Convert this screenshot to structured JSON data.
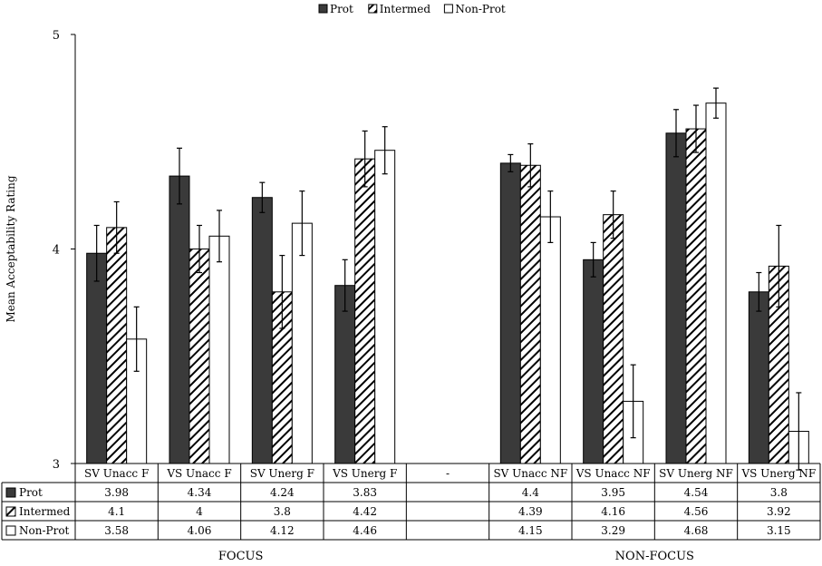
{
  "chart_data": {
    "type": "bar",
    "ylabel": "Mean Acceptability Rating",
    "xlabel": "",
    "ylim": [
      3,
      5
    ],
    "y_ticks": [
      "3",
      "4",
      "5"
    ],
    "grid": false,
    "legend_position": "top",
    "categories": [
      "SV Unacc F",
      "VS Unacc F",
      "SV Unerg F",
      "VS Unerg F",
      "-",
      "SV Unacc NF",
      "VS Unacc NF",
      "SV Unerg NF",
      "VS Unerg NF"
    ],
    "series": [
      {
        "name": "Prot",
        "fill": "dark",
        "values": [
          3.98,
          4.34,
          4.24,
          3.83,
          null,
          4.4,
          3.95,
          4.54,
          3.8
        ],
        "labels": [
          "3.98",
          "4.34",
          "4.24",
          "3.83",
          "",
          "4.4",
          "3.95",
          "4.54",
          "3.8"
        ],
        "errors": [
          0.13,
          0.13,
          0.07,
          0.12,
          null,
          0.04,
          0.08,
          0.11,
          0.09
        ]
      },
      {
        "name": "Intermed",
        "fill": "hatched",
        "values": [
          4.1,
          4,
          3.8,
          4.42,
          null,
          4.39,
          4.16,
          4.56,
          3.92
        ],
        "labels": [
          "4.1",
          "4",
          "3.8",
          "4.42",
          "",
          "4.39",
          "4.16",
          "4.56",
          "3.92"
        ],
        "errors": [
          0.12,
          0.11,
          0.17,
          0.13,
          null,
          0.1,
          0.11,
          0.11,
          0.19
        ]
      },
      {
        "name": "Non-Prot",
        "fill": "white",
        "values": [
          3.58,
          4.06,
          4.12,
          4.46,
          null,
          4.15,
          3.29,
          4.68,
          3.15
        ],
        "labels": [
          "3.58",
          "4.06",
          "4.12",
          "4.46",
          "",
          "4.15",
          "3.29",
          "4.68",
          "3.15"
        ],
        "errors": [
          0.15,
          0.12,
          0.15,
          0.11,
          null,
          0.12,
          0.17,
          0.07,
          0.18
        ]
      }
    ],
    "group_labels": [
      {
        "label": "FOCUS",
        "spans": [
          0,
          3
        ]
      },
      {
        "label": "NON-FOCUS",
        "spans": [
          5,
          8
        ]
      }
    ],
    "colors": {
      "dark": "#3a3a3a",
      "hatch": "#000000",
      "bar_outline": "#000000",
      "axis": "#000000",
      "error_bar": "#000000"
    }
  }
}
